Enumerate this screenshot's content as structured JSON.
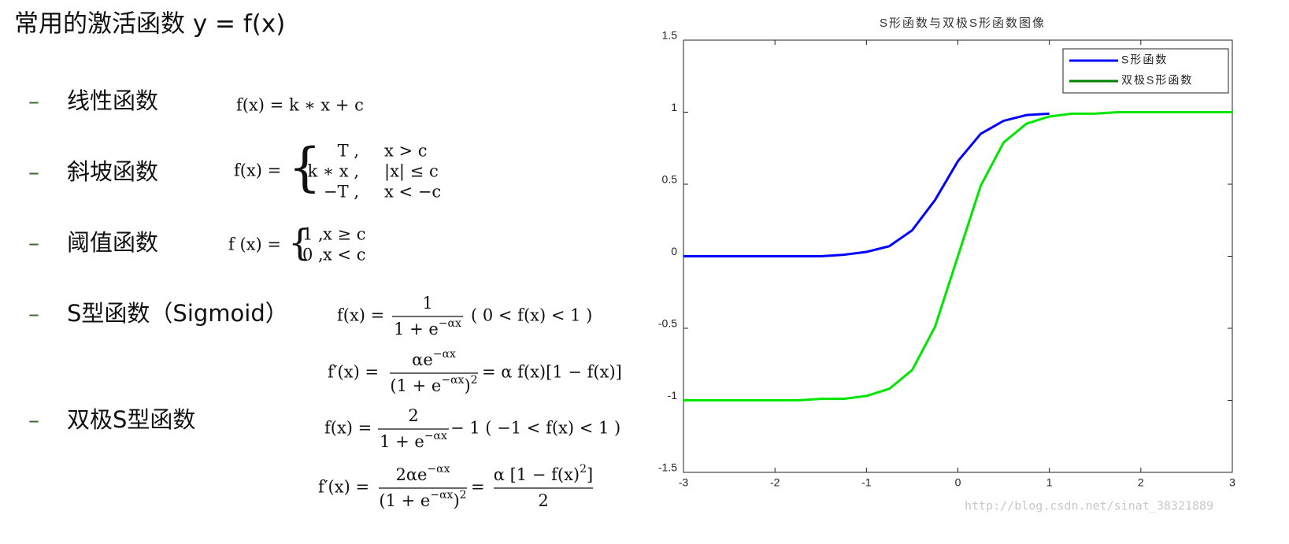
{
  "title": "常用的激活函数 y = f(x)",
  "items": [
    {
      "bullet": "–",
      "name": "线性函数",
      "formula": "f(x) = k ∗ x + c"
    },
    {
      "bullet": "–",
      "name": "斜坡函数",
      "lhs": "f(x) =",
      "cases": [
        [
          "T ,",
          "x > c"
        ],
        [
          "k ∗ x ,",
          "|x| ≤ c"
        ],
        [
          "−T ,",
          "x < −c"
        ]
      ]
    },
    {
      "bullet": "–",
      "name": "阈值函数",
      "lhs": "f (x) =",
      "cases": [
        [
          "1 ,",
          "x ≥ c"
        ],
        [
          "0 ,",
          "x < c"
        ]
      ]
    },
    {
      "bullet": "–",
      "name": "S型函数（Sigmoid）",
      "formulas": [
        {
          "lhs": "f(x) =",
          "num": [
            "1"
          ],
          "den": [
            "1 + e",
            "−αx"
          ],
          "rhs": "( 0 < f(x) < 1 )"
        },
        {
          "lhs": "f′(x) =",
          "num": [
            "αe",
            "−αx"
          ],
          "den": [
            "(1 + e",
            "−αx",
            ")",
            "2"
          ],
          "rhs": "= α f(x)[1 − f(x)]"
        }
      ]
    },
    {
      "bullet": "–",
      "name": "双极S型函数",
      "formulas": [
        {
          "lhs": "f(x) =",
          "num": [
            "2"
          ],
          "den": [
            "1 + e",
            "−αx"
          ],
          "rhs": "− 1 ( −1 < f(x) < 1 )"
        },
        {
          "lhs": "f′(x) =",
          "num": [
            "2αe",
            "−αx"
          ],
          "den": [
            "(1 + e",
            "−αx",
            ")",
            "2"
          ],
          "rhs": "=",
          "num2": [
            "α [1 − f(x)",
            "2",
            "]"
          ],
          "den2": [
            "2"
          ]
        }
      ]
    }
  ],
  "chart_data": {
    "type": "line",
    "title": "S形函数与双极S形函数图像",
    "x": [
      -3,
      -2.75,
      -2.5,
      -2.25,
      -2,
      -1.75,
      -1.5,
      -1.25,
      -1,
      -0.75,
      -0.5,
      -0.25,
      0,
      0.25,
      0.5,
      0.75,
      1,
      1.25,
      1.5,
      1.75,
      2,
      2.25,
      2.5,
      2.75,
      3
    ],
    "series": [
      {
        "name": "S形函数",
        "color": "#0000ff",
        "legend_color": "#0000ff",
        "values": [
          0,
          0,
          0,
          0,
          0,
          0,
          0,
          0.01,
          0.03,
          0.07,
          0.18,
          0.39,
          0.66,
          0.85,
          0.94,
          0.98,
          0.99,
          null,
          null,
          null,
          null,
          null,
          null,
          null,
          null
        ]
      },
      {
        "name": "双极S形函数",
        "color": "#00e600",
        "legend_color": "#008000",
        "values": [
          -1,
          -1,
          -1,
          -1,
          -1,
          -1,
          -0.99,
          -0.99,
          -0.97,
          -0.92,
          -0.79,
          -0.49,
          0,
          0.49,
          0.79,
          0.92,
          0.97,
          0.99,
          0.99,
          1,
          1,
          1,
          1,
          1,
          1
        ]
      }
    ],
    "xlim": [
      -3,
      3
    ],
    "ylim": [
      -1.5,
      1.5
    ],
    "xticks": [
      -3,
      -2,
      -1,
      0,
      1,
      2,
      3
    ],
    "yticks": [
      -1.5,
      -1,
      -0.5,
      0,
      0.5,
      1,
      1.5
    ],
    "legend": "upper right",
    "watermark": "http://blog.csdn.net/sinat_38321889"
  }
}
